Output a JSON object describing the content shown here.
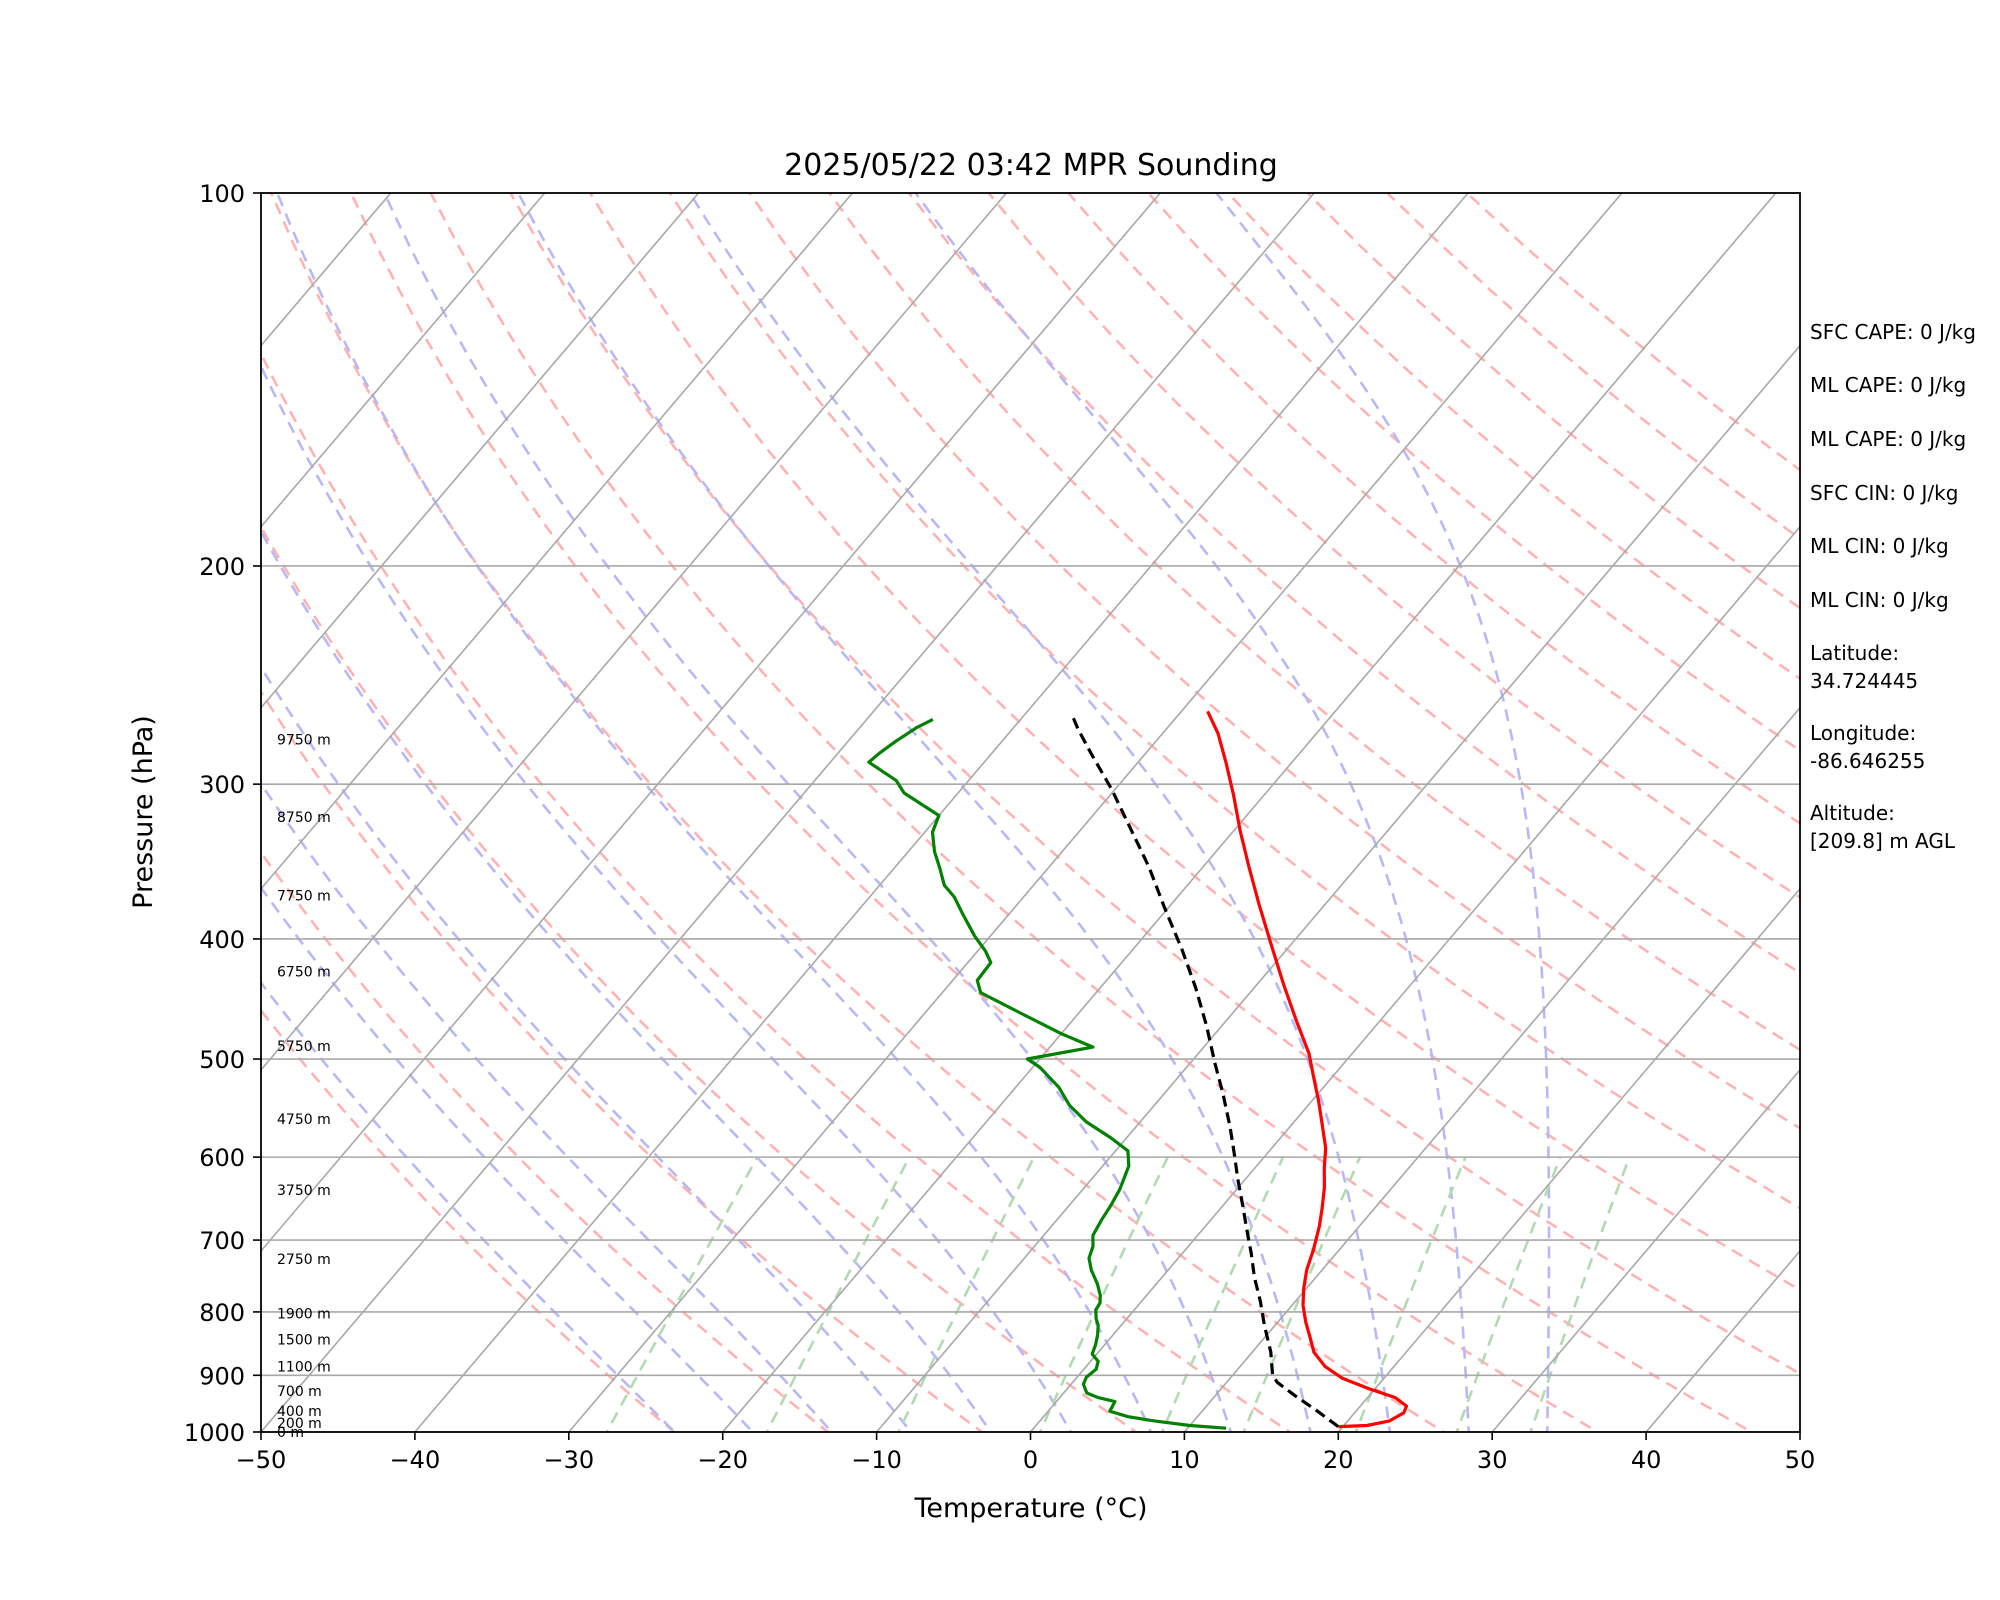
{
  "chart_data": {
    "type": "line",
    "title": "2025/05/22 03:42 MPR Sounding",
    "xlabel": "Temperature (°C)",
    "ylabel": "Pressure (hPa)",
    "xlim": [
      -50,
      50
    ],
    "ylim": [
      1000,
      100
    ],
    "y_scale": "log",
    "x_ticks": [
      "−50",
      "−40",
      "−30",
      "−20",
      "−10",
      "0",
      "10",
      "20",
      "30",
      "40",
      "50"
    ],
    "y_ticks": [
      "100",
      "200",
      "300",
      "400",
      "500",
      "600",
      "700",
      "800",
      "900",
      "1000"
    ],
    "height_labels": [
      {
        "p": 1000,
        "label": "0 m"
      },
      {
        "p": 983,
        "label": "200 m"
      },
      {
        "p": 962,
        "label": "400 m"
      },
      {
        "p": 927,
        "label": "700 m"
      },
      {
        "p": 885,
        "label": "1100 m"
      },
      {
        "p": 842,
        "label": "1500 m"
      },
      {
        "p": 802,
        "label": "1900 m"
      },
      {
        "p": 725,
        "label": "2750 m"
      },
      {
        "p": 638,
        "label": "3750 m"
      },
      {
        "p": 559,
        "label": "4750 m"
      },
      {
        "p": 488,
        "label": "5750 m"
      },
      {
        "p": 425,
        "label": "6750 m"
      },
      {
        "p": 369,
        "label": "7750 m"
      },
      {
        "p": 319,
        "label": "8750 m"
      },
      {
        "p": 276,
        "label": "9750 m"
      }
    ],
    "series": [
      {
        "name": "Temperature",
        "color": "#ff0000",
        "points": [
          [
            19.7,
            990
          ],
          [
            21.5,
            988
          ],
          [
            22.7,
            980
          ],
          [
            23.2,
            965
          ],
          [
            23.0,
            953
          ],
          [
            21.8,
            938
          ],
          [
            19.5,
            922
          ],
          [
            17.3,
            905
          ],
          [
            15.5,
            885
          ],
          [
            14.0,
            862
          ],
          [
            13.0,
            840
          ],
          [
            11.8,
            815
          ],
          [
            10.7,
            790
          ],
          [
            9.8,
            765
          ],
          [
            9.0,
            740
          ],
          [
            8.3,
            712
          ],
          [
            7.4,
            682
          ],
          [
            6.6,
            660
          ],
          [
            5.6,
            635
          ],
          [
            4.5,
            612
          ],
          [
            3.5,
            590
          ],
          [
            1.8,
            562
          ],
          [
            0.4,
            540
          ],
          [
            -1.0,
            520
          ],
          [
            -2.8,
            495
          ],
          [
            -5.5,
            465
          ],
          [
            -8.3,
            435
          ],
          [
            -11.2,
            405
          ],
          [
            -14.3,
            375
          ],
          [
            -17.0,
            350
          ],
          [
            -19.6,
            327
          ],
          [
            -22.0,
            306
          ],
          [
            -24.3,
            288
          ],
          [
            -26.4,
            273
          ],
          [
            -28.3,
            262
          ]
        ]
      },
      {
        "name": "Dewpoint",
        "color": "#008000",
        "points": [
          [
            12.5,
            993
          ],
          [
            10.0,
            988
          ],
          [
            7.5,
            980
          ],
          [
            5.5,
            972
          ],
          [
            4.0,
            962
          ],
          [
            3.8,
            945
          ],
          [
            2.5,
            938
          ],
          [
            1.5,
            930
          ],
          [
            0.8,
            915
          ],
          [
            0.6,
            903
          ],
          [
            0.8,
            890
          ],
          [
            0.5,
            877
          ],
          [
            -0.3,
            865
          ],
          [
            -0.6,
            850
          ],
          [
            -1.0,
            835
          ],
          [
            -1.5,
            820
          ],
          [
            -2.0,
            810
          ],
          [
            -2.5,
            797
          ],
          [
            -2.6,
            787
          ],
          [
            -3.0,
            776
          ],
          [
            -3.8,
            760
          ],
          [
            -5.0,
            740
          ],
          [
            -5.8,
            724
          ],
          [
            -6.2,
            708
          ],
          [
            -6.8,
            694
          ],
          [
            -7.1,
            674
          ],
          [
            -7.3,
            656
          ],
          [
            -7.6,
            637
          ],
          [
            -8.3,
            610
          ],
          [
            -9.2,
            593
          ],
          [
            -11.0,
            579
          ],
          [
            -13.5,
            562
          ],
          [
            -15.5,
            545
          ],
          [
            -17.2,
            527
          ],
          [
            -19.5,
            508
          ],
          [
            -20.8,
            500
          ],
          [
            -17.2,
            489
          ],
          [
            -20.0,
            477
          ],
          [
            -23.8,
            459
          ],
          [
            -27.5,
            442
          ],
          [
            -28.4,
            432
          ],
          [
            -28.5,
            418
          ],
          [
            -29.5,
            409
          ],
          [
            -31.0,
            398
          ],
          [
            -33.0,
            382
          ],
          [
            -34.5,
            370
          ],
          [
            -35.8,
            362
          ],
          [
            -37.0,
            351
          ],
          [
            -38.3,
            340
          ],
          [
            -39.5,
            328
          ],
          [
            -40.0,
            318
          ],
          [
            -43.5,
            305
          ],
          [
            -44.7,
            298
          ],
          [
            -47.5,
            288
          ],
          [
            -47.3,
            283
          ],
          [
            -46.9,
            277
          ],
          [
            -46.3,
            270
          ],
          [
            -45.7,
            266
          ]
        ]
      },
      {
        "name": "Parcel",
        "color": "#000000",
        "points": [
          [
            19.7,
            990
          ],
          [
            17.5,
            962
          ],
          [
            15.2,
            935
          ],
          [
            13.3,
            912
          ],
          [
            12.6,
            900
          ],
          [
            11.2,
            862
          ],
          [
            9.3,
            820
          ],
          [
            7.7,
            784
          ],
          [
            6.0,
            750
          ],
          [
            4.5,
            718
          ],
          [
            2.8,
            685
          ],
          [
            1.2,
            655
          ],
          [
            -0.5,
            625
          ],
          [
            -2.2,
            595
          ],
          [
            -3.9,
            567
          ],
          [
            -6.2,
            533
          ],
          [
            -8.3,
            505
          ],
          [
            -11.0,
            470
          ],
          [
            -13.8,
            438
          ],
          [
            -16.8,
            408
          ],
          [
            -20.3,
            377
          ],
          [
            -23.5,
            350
          ],
          [
            -26.8,
            326
          ],
          [
            -30.2,
            303
          ],
          [
            -33.6,
            283
          ],
          [
            -35.7,
            271
          ],
          [
            -36.7,
            265
          ]
        ]
      }
    ],
    "dry_adiabats_theta_K": [
      250,
      260,
      270,
      280,
      290,
      300,
      310,
      320,
      330,
      340,
      350,
      360,
      370,
      380,
      390,
      400,
      410,
      420,
      430,
      440,
      450
    ],
    "moist_adiabats_start_C": [
      -20,
      -15,
      -10,
      -5,
      0,
      5,
      10,
      15,
      20,
      25,
      30,
      35
    ],
    "mixing_ratio_lines_gkg": [
      0.4,
      1,
      2,
      4,
      7,
      10,
      16,
      24,
      32
    ],
    "isotherm_spacing_C": 10,
    "skew_factor_px": 0.85,
    "grid": true
  },
  "info": {
    "lines": [
      "SFC CAPE: 0 J/kg",
      "ML CAPE: 0 J/kg",
      "ML CAPE: 0 J/kg",
      "SFC CIN: 0 J/kg",
      "ML CIN: 0 J/kg",
      "ML CIN: 0 J/kg",
      "Latitude:",
      "34.724445",
      "Longitude:",
      "-86.646255",
      "Altitude:",
      "[209.8] m AGL"
    ]
  },
  "colors": {
    "temperature": "#ff0000",
    "dewpoint": "#008000",
    "parcel": "#000000",
    "dry_adiabat": "#ffb3b3",
    "moist_adiabat": "#b8b8f5",
    "mixing_ratio": "#b3d9b3",
    "isotherm": "#a8a8a8",
    "isobar": "#a8a8a8"
  }
}
